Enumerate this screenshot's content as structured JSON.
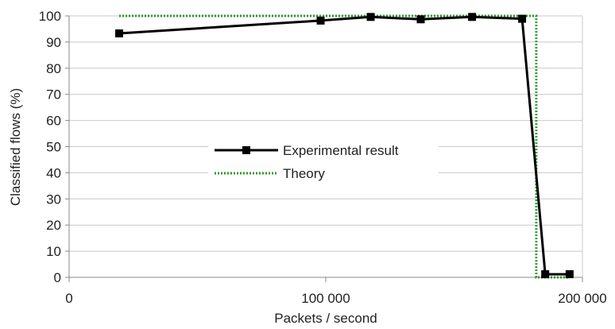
{
  "chart_data": {
    "type": "line",
    "xlabel": "Packets / second",
    "ylabel": "Classified flows (%)",
    "xlim": [
      0,
      200000
    ],
    "ylim": [
      0,
      100
    ],
    "x_ticks": [
      {
        "value": 0,
        "label": "0"
      },
      {
        "value": 100000,
        "label": "100 000"
      },
      {
        "value": 200000,
        "label": "200 000"
      }
    ],
    "y_ticks": [
      {
        "value": 0,
        "label": "0"
      },
      {
        "value": 10,
        "label": "10"
      },
      {
        "value": 20,
        "label": "20"
      },
      {
        "value": 30,
        "label": "30"
      },
      {
        "value": 40,
        "label": "40"
      },
      {
        "value": 50,
        "label": "50"
      },
      {
        "value": 60,
        "label": "60"
      },
      {
        "value": 70,
        "label": "70"
      },
      {
        "value": 80,
        "label": "80"
      },
      {
        "value": 90,
        "label": "90"
      },
      {
        "value": 100,
        "label": "100"
      }
    ],
    "grid": "horizontal",
    "legend_position": "center-left",
    "series": [
      {
        "name": "Experimental result",
        "color": "#000000",
        "style": "solid",
        "marker": "square",
        "points": [
          {
            "x": 19500,
            "y": 93.3
          },
          {
            "x": 98000,
            "y": 98.2
          },
          {
            "x": 117500,
            "y": 99.6
          },
          {
            "x": 137000,
            "y": 98.7
          },
          {
            "x": 157000,
            "y": 99.6
          },
          {
            "x": 176500,
            "y": 98.9
          },
          {
            "x": 185500,
            "y": 1.2
          },
          {
            "x": 195000,
            "y": 1.2
          }
        ]
      },
      {
        "name": "Theory",
        "color": "#2e9a2e",
        "style": "dotted",
        "marker": "none",
        "points": [
          {
            "x": 19500,
            "y": 100
          },
          {
            "x": 182000,
            "y": 100
          },
          {
            "x": 182000,
            "y": 0
          },
          {
            "x": 195000,
            "y": 0
          }
        ]
      }
    ]
  }
}
